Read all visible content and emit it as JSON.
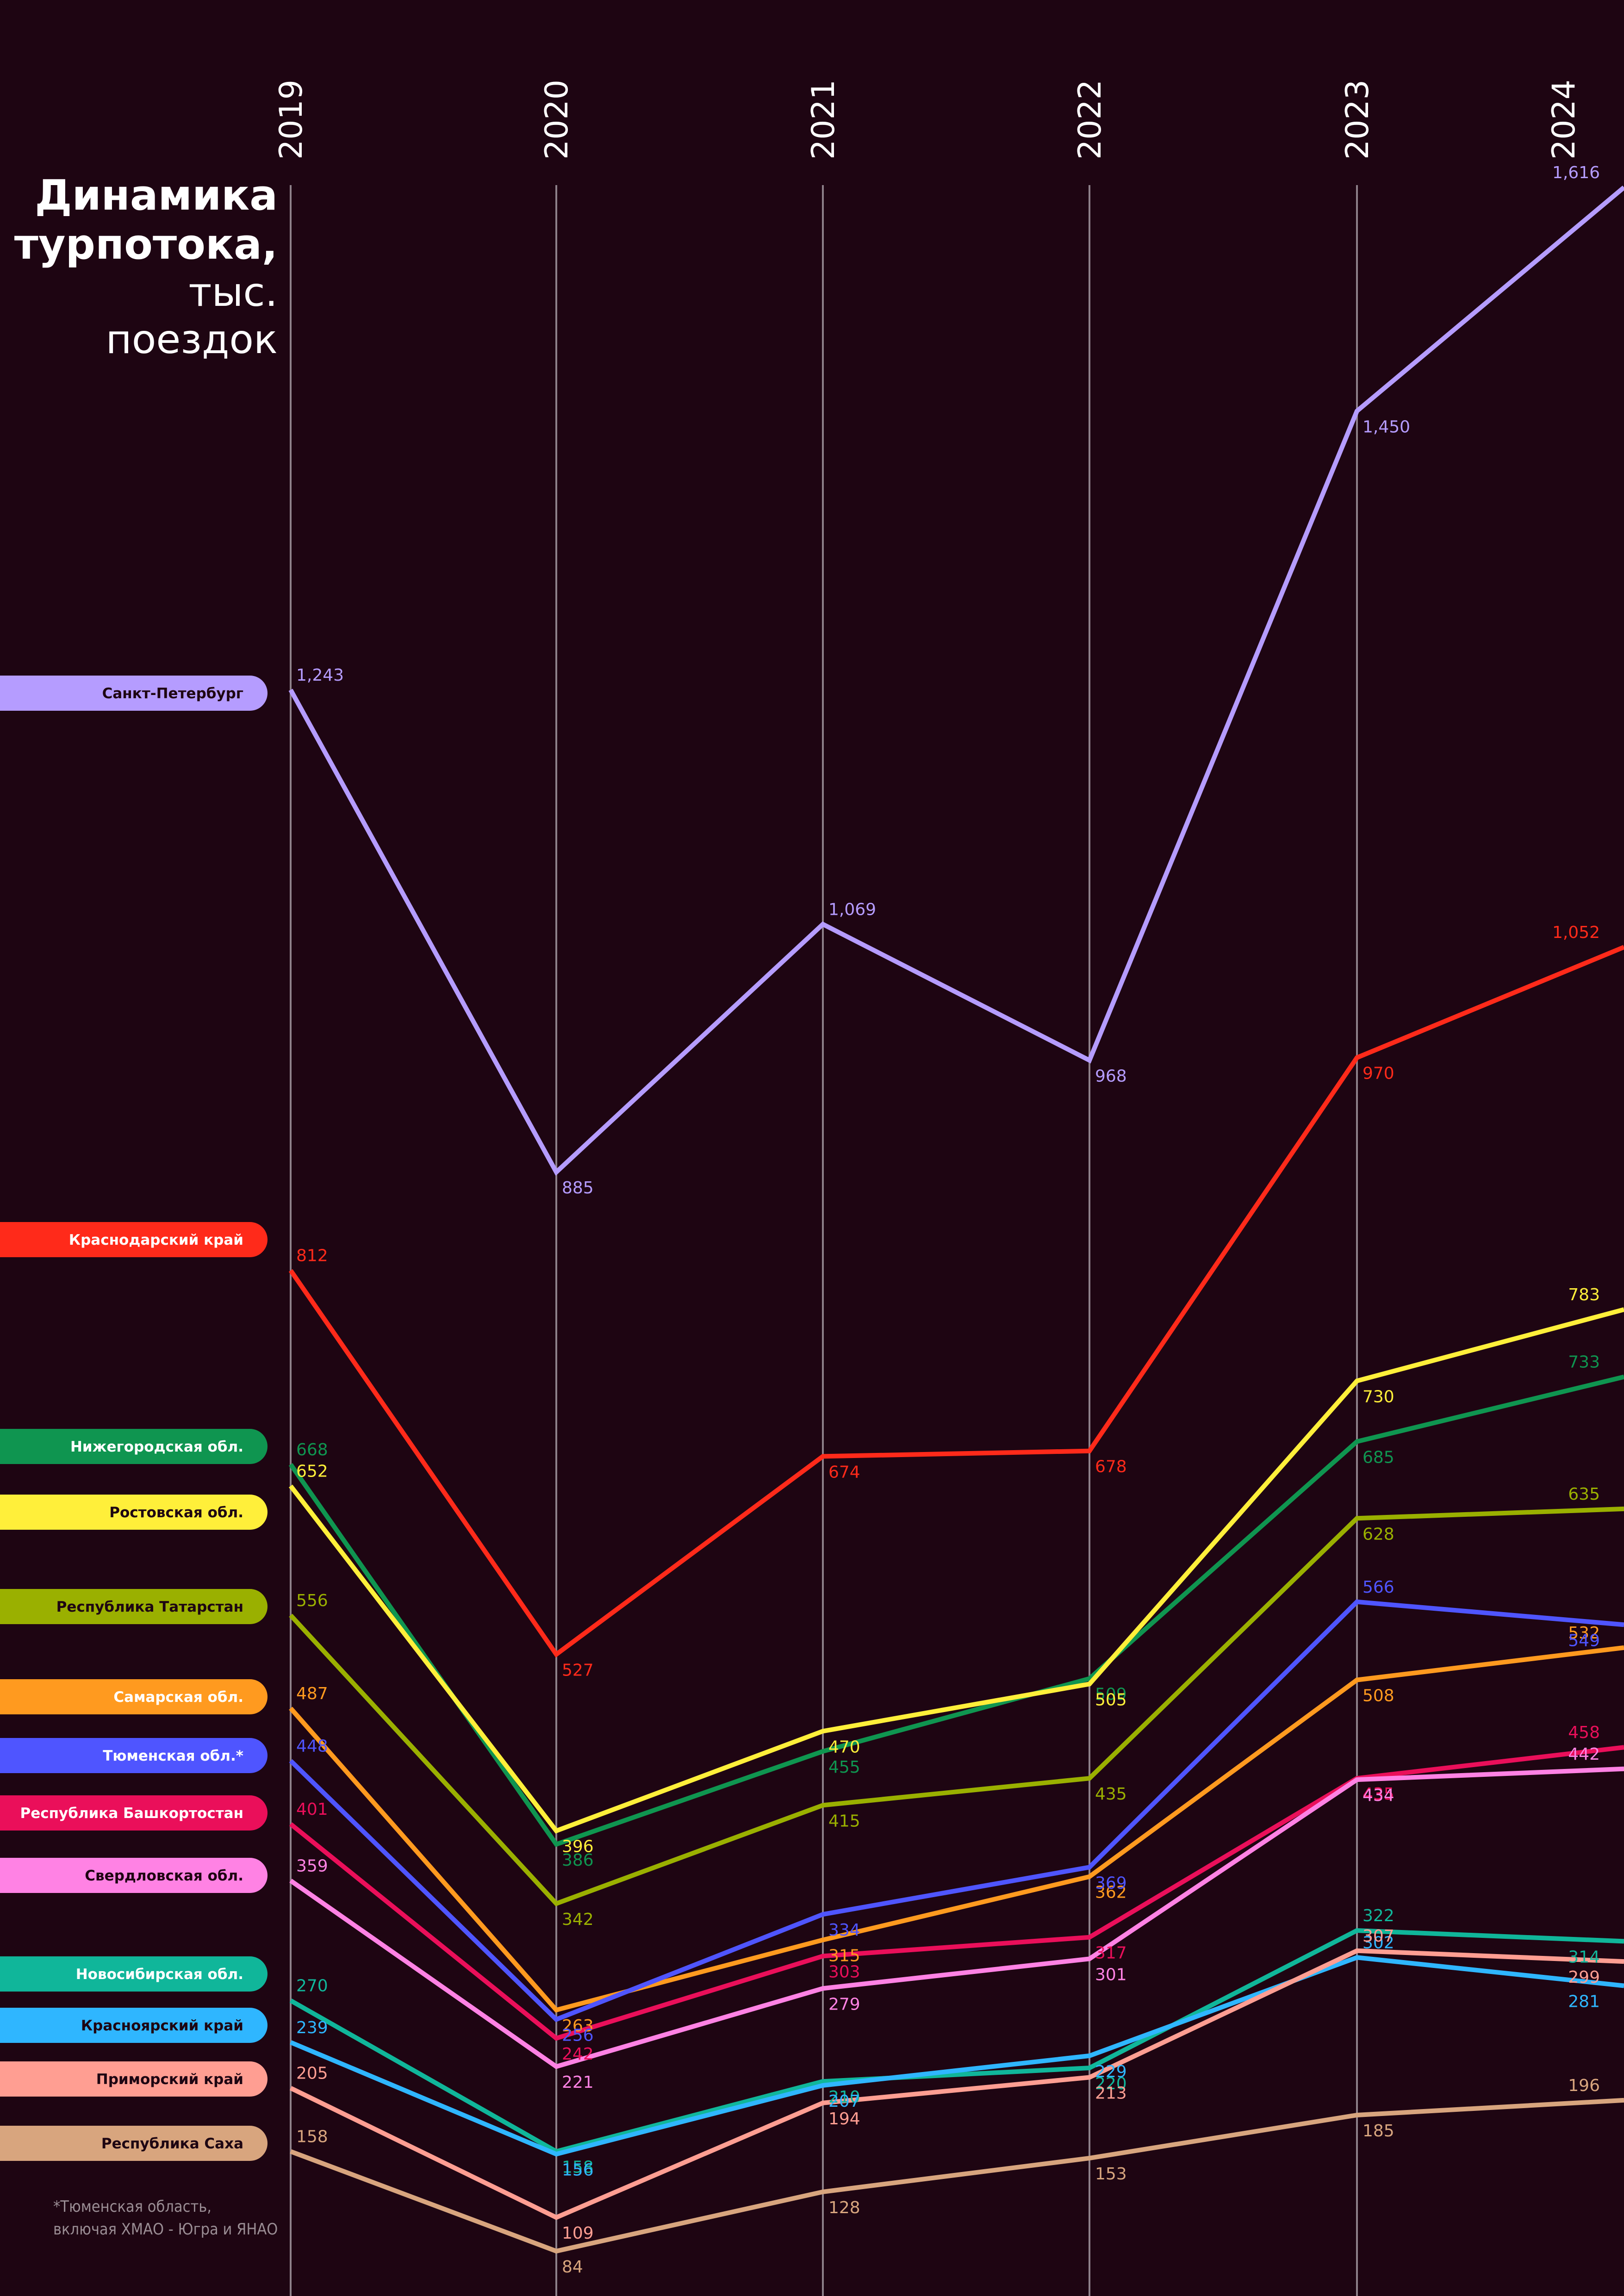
{
  "title": {
    "line1": "Динамика",
    "line2": "турпотока,",
    "line3": "тыс.",
    "line4": "поездок"
  },
  "footnote": "*Тюменская область,\nвключая ХМАО - Югра и ЯНАО",
  "chart_data": {
    "type": "line",
    "x": [
      "2019",
      "2020",
      "2021",
      "2022",
      "2023",
      "2024"
    ],
    "series": [
      {
        "name": "Санкт-Петербург",
        "color": "#b59cff",
        "legend_text_color": "#1e0512",
        "values": [
          1243,
          885,
          1069,
          968,
          1450,
          1616
        ],
        "labels": [
          "1,243",
          "885",
          "1,069",
          "968",
          "1,450",
          "1,616"
        ]
      },
      {
        "name": "Краснодарский край",
        "color": "#ff2a1a",
        "legend_text_color": "#ffffff",
        "values": [
          812,
          527,
          674,
          678,
          970,
          1052
        ],
        "labels": [
          "812",
          "527",
          "674",
          "678",
          "970",
          "1,052"
        ]
      },
      {
        "name": "Нижегородская обл.",
        "color": "#0f9550",
        "legend_text_color": "#ffffff",
        "values": [
          668,
          386,
          455,
          509,
          685,
          733
        ],
        "labels": [
          "668",
          "386",
          "455",
          "509",
          "685",
          "733"
        ]
      },
      {
        "name": "Ростовская обл.",
        "color": "#ffef3a",
        "legend_text_color": "#1e0512",
        "values": [
          652,
          396,
          470,
          505,
          730,
          783
        ],
        "labels": [
          "652",
          "396",
          "470",
          "505",
          "730",
          "783"
        ]
      },
      {
        "name": "Республика Татарстан",
        "color": "#9ab000",
        "legend_text_color": "#1e0512",
        "values": [
          556,
          342,
          415,
          435,
          628,
          635
        ],
        "labels": [
          "556",
          "342",
          "415",
          "435",
          "628",
          "635"
        ]
      },
      {
        "name": "Самарская обл.",
        "color": "#ff9a1f",
        "legend_text_color": "#ffffff",
        "values": [
          487,
          263,
          315,
          362,
          508,
          532
        ],
        "labels": [
          "487",
          "263",
          "315",
          "362",
          "508",
          "532"
        ]
      },
      {
        "name": "Тюменская обл.*",
        "color": "#4f55ff",
        "legend_text_color": "#ffffff",
        "values": [
          448,
          256,
          334,
          369,
          566,
          549
        ],
        "labels": [
          "448",
          "256",
          "334",
          "369",
          "566",
          "549"
        ]
      },
      {
        "name": "Республика Башкортостан",
        "color": "#ea0f5a",
        "legend_text_color": "#ffffff",
        "values": [
          401,
          242,
          303,
          317,
          435,
          458
        ],
        "labels": [
          "401",
          "242",
          "303",
          "317",
          "435",
          "458"
        ]
      },
      {
        "name": "Свердловская обл.",
        "color": "#ff82e4",
        "legend_text_color": "#1e0512",
        "values": [
          359,
          221,
          279,
          301,
          434,
          442
        ],
        "labels": [
          "359",
          "221",
          "279",
          "301",
          "434",
          "442"
        ]
      },
      {
        "name": "Новосибирская обл.",
        "color": "#10b69a",
        "legend_text_color": "#ffffff",
        "values": [
          270,
          158,
          210,
          220,
          322,
          314
        ],
        "labels": [
          "270",
          "158",
          "210",
          "220",
          "322",
          "314"
        ]
      },
      {
        "name": "Красноярский край",
        "color": "#2fb6ff",
        "legend_text_color": "#1e0512",
        "values": [
          239,
          156,
          207,
          229,
          302,
          281
        ],
        "labels": [
          "239",
          "156",
          "207",
          "229",
          "302",
          "281"
        ]
      },
      {
        "name": "Приморский край",
        "color": "#ff9e92",
        "legend_text_color": "#1e0512",
        "values": [
          205,
          109,
          194,
          213,
          307,
          299
        ],
        "labels": [
          "205",
          "109",
          "194",
          "213",
          "307",
          "299"
        ]
      },
      {
        "name": "Республика Саха",
        "color": "#d8a57e",
        "legend_text_color": "#1e0512",
        "values": [
          158,
          84,
          128,
          153,
          185,
          196
        ],
        "labels": [
          "158",
          "84",
          "128",
          "153",
          "185",
          "196"
        ]
      }
    ],
    "ylim": [
      0,
      1616
    ],
    "grid": "vertical",
    "legend": "left",
    "background": "#1e0512"
  }
}
